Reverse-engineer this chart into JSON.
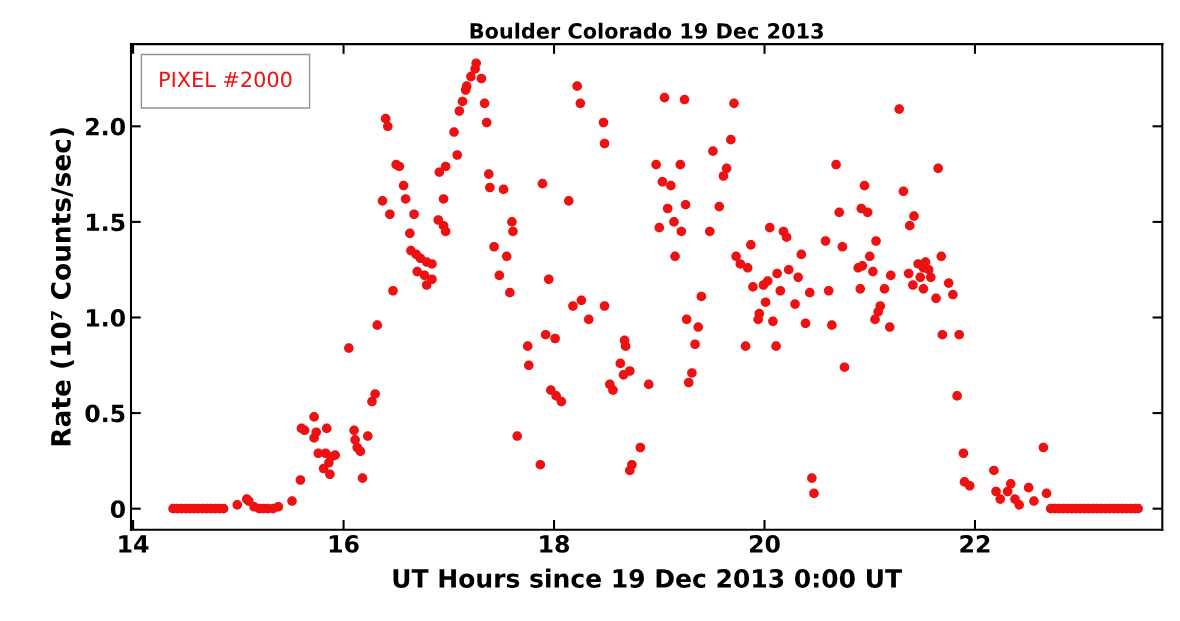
{
  "chart_data": {
    "type": "scatter",
    "title": "Boulder Colorado 19 Dec 2013",
    "xlabel": "UT Hours since 19 Dec 2013 0:00 UT",
    "ylabel": "Rate (10⁷ Counts/sec)",
    "xlim": [
      13.98,
      23.78
    ],
    "xticks": [
      14,
      16,
      18,
      20,
      22
    ],
    "ylim": [
      -0.11,
      2.43
    ],
    "yticks": [
      0,
      {
        "value": 0.5,
        "label": "0.5"
      },
      {
        "value": 1.0,
        "label": "1.0"
      },
      {
        "value": 1.5,
        "label": "1.5"
      },
      {
        "value": 2.0,
        "label": "2.0"
      }
    ],
    "marker": "circle",
    "grid": false,
    "legend": "top left",
    "series": [
      {
        "name": "PIXEL #2000",
        "color": "#ee1111",
        "x": [
          14.38,
          14.42,
          14.46,
          14.5,
          14.54,
          14.58,
          14.62,
          14.66,
          14.7,
          14.74,
          14.78,
          14.82,
          14.86,
          14.99,
          15.08,
          15.1,
          15.15,
          15.2,
          15.24,
          15.28,
          15.33,
          15.38,
          15.51,
          15.59,
          15.6,
          15.63,
          15.72,
          15.72,
          15.74,
          15.84,
          15.76,
          15.81,
          15.83,
          15.88,
          15.92,
          15.87,
          15.86,
          16.05,
          16.1,
          16.13,
          16.23,
          16.11,
          16.16,
          16.18,
          16.27,
          16.3,
          16.32,
          16.37,
          16.4,
          16.42,
          16.44,
          16.47,
          16.5,
          16.53,
          16.57,
          16.59,
          16.67,
          16.63,
          16.64,
          16.69,
          16.73,
          16.79,
          16.84,
          16.7,
          16.77,
          16.79,
          16.84,
          16.91,
          16.95,
          16.9,
          16.95,
          16.97,
          16.97,
          17.05,
          17.08,
          17.1,
          17.13,
          17.16,
          17.17,
          17.21,
          17.25,
          17.26,
          17.31,
          17.34,
          17.36,
          17.38,
          17.39,
          17.52,
          17.6,
          17.61,
          17.43,
          17.55,
          17.48,
          17.58,
          17.65,
          17.87,
          17.89,
          17.95,
          18.14,
          17.75,
          17.76,
          17.92,
          18.01,
          17.97,
          18.02,
          18.07,
          18.18,
          18.26,
          18.33,
          18.48,
          18.22,
          18.25,
          18.47,
          18.48,
          18.67,
          18.68,
          18.63,
          18.66,
          18.72,
          18.53,
          18.56,
          18.9,
          18.82,
          18.74,
          18.72,
          19.05,
          19.24,
          18.97,
          19.2,
          19.03,
          19.11,
          19.08,
          19.25,
          19.0,
          19.14,
          19.21,
          19.15,
          19.4,
          19.26,
          19.37,
          19.34,
          19.31,
          19.28,
          19.51,
          19.68,
          19.71,
          19.64,
          19.61,
          19.57,
          19.48,
          19.73,
          19.77,
          19.84,
          19.87,
          19.82,
          19.89,
          19.99,
          20.03,
          20.05,
          20.18,
          20.21,
          20.35,
          20.12,
          20.23,
          20.32,
          20.15,
          20.43,
          20.01,
          20.29,
          19.95,
          19.94,
          20.08,
          20.39,
          20.11,
          20.45,
          20.47,
          20.68,
          20.71,
          20.58,
          20.74,
          20.61,
          20.64,
          20.76,
          20.95,
          20.92,
          20.98,
          21.06,
          21.0,
          20.89,
          20.93,
          21.03,
          20.91,
          21.1,
          21.08,
          21.05,
          21.14,
          21.19,
          21.2,
          21.28,
          21.32,
          21.42,
          21.38,
          21.65,
          21.68,
          21.37,
          21.46,
          21.51,
          21.56,
          21.41,
          21.51,
          21.58,
          21.48,
          21.53,
          21.63,
          21.75,
          21.79,
          21.69,
          21.85,
          21.83,
          21.89,
          21.9,
          21.95,
          22.18,
          22.2,
          22.24,
          22.31,
          22.34,
          22.38,
          22.42,
          22.51,
          22.56,
          22.65,
          22.68,
          22.72,
          22.76,
          22.8,
          22.84,
          22.88,
          22.92,
          22.96,
          23.0,
          23.04,
          23.08,
          23.12,
          23.16,
          23.2,
          23.24,
          23.28,
          23.32,
          23.36,
          23.4,
          23.44,
          23.48,
          23.52,
          23.55
        ],
        "values": [
          0,
          0,
          0,
          0,
          0,
          0,
          0,
          0,
          0,
          0,
          0,
          0,
          0,
          0.02,
          0.05,
          0.04,
          0.01,
          0,
          0,
          0,
          0,
          0.01,
          0.04,
          0.15,
          0.42,
          0.41,
          0.48,
          0.37,
          0.4,
          0.42,
          0.29,
          0.21,
          0.29,
          0.27,
          0.28,
          0.18,
          0.24,
          0.84,
          0.41,
          0.32,
          0.38,
          0.36,
          0.3,
          0.16,
          0.56,
          0.6,
          0.96,
          1.61,
          2.04,
          2.0,
          1.54,
          1.14,
          1.8,
          1.79,
          1.69,
          1.62,
          1.54,
          1.44,
          1.35,
          1.33,
          1.31,
          1.29,
          1.28,
          1.24,
          1.22,
          1.17,
          1.2,
          1.76,
          1.62,
          1.51,
          1.48,
          1.45,
          1.79,
          1.97,
          1.85,
          2.08,
          2.13,
          2.19,
          2.21,
          2.26,
          2.3,
          2.33,
          2.25,
          2.12,
          2.02,
          1.75,
          1.68,
          1.67,
          1.5,
          1.45,
          1.37,
          1.32,
          1.22,
          1.13,
          0.38,
          0.23,
          1.7,
          1.2,
          1.61,
          0.85,
          0.75,
          0.91,
          0.89,
          0.62,
          0.59,
          0.56,
          1.06,
          1.09,
          0.99,
          1.06,
          2.21,
          2.12,
          2.02,
          1.91,
          0.88,
          0.85,
          0.76,
          0.7,
          0.72,
          0.65,
          0.62,
          0.65,
          0.32,
          0.23,
          0.2,
          2.15,
          2.14,
          1.8,
          1.8,
          1.71,
          1.69,
          1.57,
          1.59,
          1.47,
          1.5,
          1.45,
          1.32,
          1.11,
          0.99,
          0.95,
          0.86,
          0.71,
          0.66,
          1.87,
          1.93,
          2.12,
          1.78,
          1.74,
          1.58,
          1.45,
          1.32,
          1.28,
          1.26,
          1.38,
          0.85,
          1.16,
          1.17,
          1.19,
          1.47,
          1.45,
          1.42,
          1.33,
          1.23,
          1.25,
          1.21,
          1.14,
          1.13,
          1.08,
          1.07,
          1.02,
          0.99,
          0.98,
          0.97,
          0.85,
          0.16,
          0.08,
          1.8,
          1.55,
          1.4,
          1.37,
          1.14,
          0.96,
          0.74,
          1.69,
          1.57,
          1.55,
          1.4,
          1.32,
          1.26,
          1.27,
          1.24,
          1.15,
          1.06,
          1.03,
          0.99,
          1.15,
          0.95,
          1.22,
          2.09,
          1.66,
          1.53,
          1.48,
          1.78,
          1.32,
          1.23,
          1.28,
          1.26,
          1.25,
          1.17,
          1.15,
          1.21,
          1.21,
          1.29,
          1.1,
          1.18,
          1.12,
          0.91,
          0.91,
          0.59,
          0.29,
          0.14,
          0.12,
          0.2,
          0.09,
          0.05,
          0.09,
          0.13,
          0.05,
          0.02,
          0.11,
          0.04,
          0.32,
          0.08,
          0,
          0,
          0,
          0,
          0,
          0,
          0,
          0,
          0,
          0,
          0,
          0,
          0,
          0,
          0,
          0,
          0,
          0,
          0,
          0,
          0,
          0
        ]
      }
    ]
  }
}
